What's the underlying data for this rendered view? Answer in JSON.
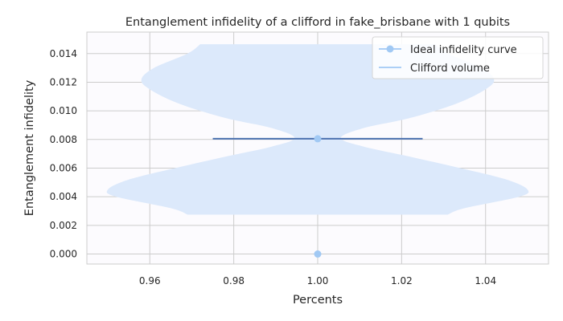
{
  "chart_data": {
    "type": "violin",
    "title": "Entanglement infidelity of a clifford in fake_brisbane with 1 qubits",
    "xlabel": "Percents",
    "ylabel": "Entanglement infidelity",
    "xlim": [
      0.945,
      1.055
    ],
    "ylim": [
      -0.0007,
      0.0155
    ],
    "xticks": [
      0.96,
      0.98,
      1.0,
      1.02,
      1.04
    ],
    "xtick_labels": [
      "0.96",
      "0.98",
      "1.00",
      "1.02",
      "1.04"
    ],
    "yticks": [
      0.0,
      0.002,
      0.004,
      0.006,
      0.008,
      0.01,
      0.012,
      0.014
    ],
    "ytick_labels": [
      "0.000",
      "0.002",
      "0.004",
      "0.006",
      "0.008",
      "0.010",
      "0.012",
      "0.014"
    ],
    "grid": true,
    "legend_position": "top-right",
    "series": [
      {
        "name": "Ideal infidelity curve",
        "kind": "line-marker",
        "color": "#a1c9f4",
        "x": [
          1.0,
          1.0
        ],
        "y": [
          0.0,
          0.00805
        ]
      },
      {
        "name": "Clifford volume",
        "kind": "violin",
        "color": "#a1c9f4",
        "fill_color": "#dce9fb",
        "x_center": 1.0,
        "profile": [
          [
            0.00275,
            0.031
          ],
          [
            0.0032,
            0.035
          ],
          [
            0.004,
            0.048
          ],
          [
            0.0045,
            0.05
          ],
          [
            0.0052,
            0.045
          ],
          [
            0.006,
            0.034
          ],
          [
            0.0068,
            0.022
          ],
          [
            0.0075,
            0.011
          ],
          [
            0.0081,
            0.0055
          ],
          [
            0.0088,
            0.011
          ],
          [
            0.0095,
            0.022
          ],
          [
            0.0105,
            0.033
          ],
          [
            0.0115,
            0.04
          ],
          [
            0.0122,
            0.042
          ],
          [
            0.013,
            0.039
          ],
          [
            0.014,
            0.031
          ],
          [
            0.01465,
            0.028
          ]
        ],
        "median_line": {
          "y": 0.00805,
          "x_from": 0.975,
          "x_to": 1.025,
          "color": "#4c72b0"
        }
      }
    ]
  }
}
